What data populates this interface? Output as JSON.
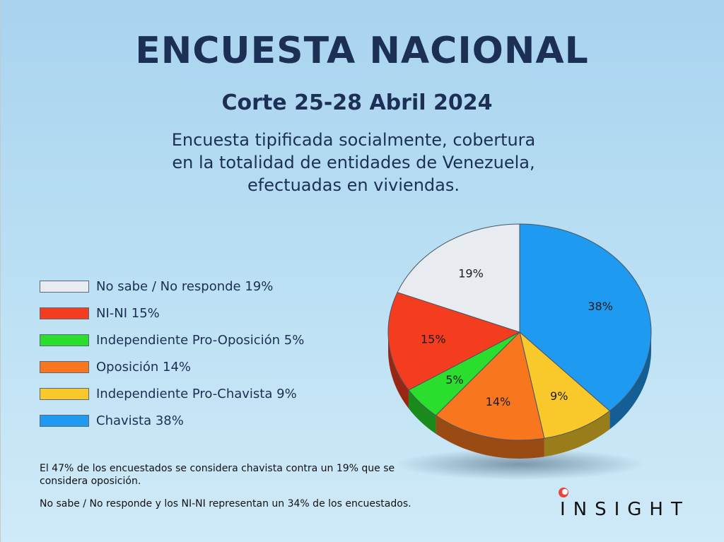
{
  "header": {
    "title": "ENCUESTA NACIONAL",
    "subtitle": "Corte 25-28 Abril 2024",
    "description_lines": [
      "Encuesta tipificada socialmente, cobertura",
      "en la totalidad de entidades de Venezuela,",
      "efectuadas en viviendas."
    ]
  },
  "chart_data": {
    "type": "pie",
    "slices": [
      {
        "label": "Chavista",
        "legend": "Chavista 38%",
        "value": 38,
        "display": "38%",
        "color": "#1e9af0"
      },
      {
        "label": "Independiente Pro-Chavista",
        "legend": "Independiente Pro-Chavista 9%",
        "value": 9,
        "display": "9%",
        "color": "#f9c92c"
      },
      {
        "label": "Oposición",
        "legend": "Oposición 14%",
        "value": 14,
        "display": "14%",
        "color": "#f8771e"
      },
      {
        "label": "Independiente Pro-Oposición",
        "legend": "Independiente Pro-Oposición 5%",
        "value": 5,
        "display": "5%",
        "color": "#2bde2e"
      },
      {
        "label": "NI-NI",
        "legend": "NI-NI 15%",
        "value": 15,
        "display": "15%",
        "color": "#f33d1e"
      },
      {
        "label": "No sabe / No responde",
        "legend": "No sabe / No responde 19%",
        "value": 19,
        "display": "19%",
        "color": "#e8ecf1"
      }
    ],
    "legend_order": [
      5,
      4,
      3,
      2,
      1,
      0
    ],
    "legend_placement": "left"
  },
  "notes": [
    "El 47% de los encuestados se considera chavista contra un 19% que se considera oposición.",
    "No sabe / No responde y los NI-NI representan un 34% de los encuestados."
  ],
  "brand": {
    "logo_text": "INSIGHT",
    "accent_color": "#e8453c"
  }
}
